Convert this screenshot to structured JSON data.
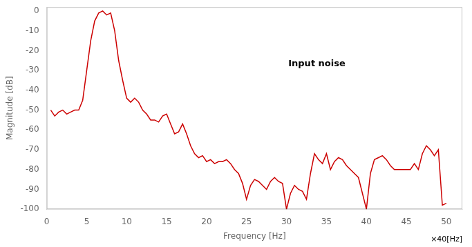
{
  "chart_data": {
    "type": "line",
    "xlabel": "Frequency [Hz]",
    "ylabel": "Magnitude [dB]",
    "annotations": [
      "Input noise",
      "×40[Hz]"
    ],
    "x": [
      0.5,
      1.0,
      1.5,
      2.0,
      2.5,
      3.0,
      3.5,
      4.0,
      4.5,
      5.0,
      5.5,
      6.0,
      6.5,
      7.0,
      7.5,
      8.0,
      8.5,
      9.0,
      9.5,
      10.0,
      10.5,
      11.0,
      11.5,
      12.0,
      12.5,
      13.0,
      13.5,
      14.0,
      14.5,
      15.0,
      15.5,
      16.0,
      16.5,
      17.0,
      17.5,
      18.0,
      18.5,
      19.0,
      19.5,
      20.0,
      20.5,
      21.0,
      21.5,
      22.0,
      22.5,
      23.0,
      23.5,
      24.0,
      24.5,
      25.0,
      25.5,
      26.0,
      26.5,
      27.0,
      27.5,
      28.0,
      28.5,
      29.0,
      29.5,
      30.0,
      30.5,
      31.0,
      31.5,
      32.0,
      32.5,
      33.0,
      33.5,
      34.0,
      34.5,
      35.0,
      35.5,
      36.0,
      36.5,
      37.0,
      37.5,
      38.0,
      38.5,
      39.0,
      39.5,
      40.0,
      40.5,
      41.0,
      41.5,
      42.0,
      42.5,
      43.0,
      43.5,
      44.0,
      44.5,
      45.0,
      45.5,
      46.0,
      46.5,
      47.0,
      47.5,
      48.0,
      48.5,
      49.0,
      49.5,
      50.0
    ],
    "values": [
      -50,
      -53,
      -51,
      -50,
      -52,
      -51,
      -50,
      -50,
      -45,
      -30,
      -15,
      -5,
      -1,
      0,
      -2,
      -1,
      -10,
      -25,
      -35,
      -44,
      -46,
      -44,
      -46,
      -50,
      -52,
      -55,
      -55,
      -56,
      -53,
      -52,
      -57,
      -62,
      -61,
      -57,
      -62,
      -68,
      -72,
      -74,
      -73,
      -76,
      -75,
      -77,
      -76,
      -76,
      -75,
      -77,
      -80,
      -82,
      -87,
      -95,
      -88,
      -85,
      -86,
      -88,
      -90,
      -86,
      -84,
      -86,
      -87,
      -100,
      -92,
      -88,
      -90,
      -91,
      -95,
      -82,
      -72,
      -75,
      -77,
      -72,
      -80,
      -76,
      -74,
      -75,
      -78,
      -80,
      -82,
      -84,
      -92,
      -100,
      -82,
      -75,
      -74,
      -73,
      -75,
      -78,
      -80,
      -80,
      -80,
      -80,
      -80,
      -77,
      -80,
      -72,
      -68,
      -70,
      -73,
      -70,
      -98,
      -97
    ],
    "color": "#cc0000",
    "xlim": [
      0,
      52
    ],
    "ylim": [
      -100,
      2
    ],
    "xticks": [
      0,
      5,
      10,
      15,
      20,
      25,
      30,
      35,
      40,
      45,
      50
    ],
    "yticks": [
      0,
      -10,
      -20,
      -30,
      -40,
      -50,
      -60,
      -70,
      -80,
      -90,
      -100
    ],
    "grid": false
  }
}
